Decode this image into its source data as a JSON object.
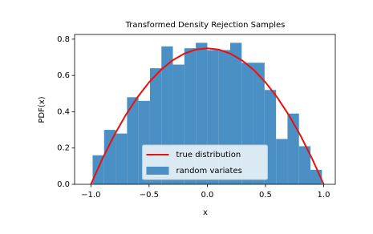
{
  "chart_data": {
    "type": "histogram",
    "title": "Transformed Density Rejection Samples",
    "x_label": "x",
    "y_label": "PDF(x)",
    "xlim": [
      -1.14,
      1.1
    ],
    "ylim": [
      0,
      0.826
    ],
    "xticks": [
      {
        "value": -1.0,
        "label": "−1.0"
      },
      {
        "value": -0.5,
        "label": "−0.5"
      },
      {
        "value": 0,
        "label": "0.0"
      },
      0.5,
      {
        "value": 1.0,
        "label": "1.0"
      }
    ],
    "yticks": [
      {
        "value": 0,
        "label": "0.0"
      },
      0.2,
      0.4,
      0.6,
      0.8
    ],
    "legend": "lower center",
    "series": [
      {
        "name": "true distribution",
        "type": "line",
        "color": "#e8110f",
        "x": [
          -1.0,
          -0.9,
          -0.8,
          -0.7,
          -0.6,
          -0.5,
          -0.4,
          -0.3,
          -0.2,
          -0.1,
          0,
          0.1,
          0.2,
          0.3,
          0.4,
          0.5,
          0.6,
          0.7,
          0.8,
          0.9,
          1.0
        ],
        "values": [
          0,
          0.1425,
          0.27,
          0.3825,
          0.48,
          0.5625,
          0.63,
          0.6825,
          0.72,
          0.7425,
          0.75,
          0.7425,
          0.72,
          0.6825,
          0.63,
          0.5625,
          0.48,
          0.3825,
          0.27,
          0.1425,
          0
        ]
      },
      {
        "name": "random variates",
        "type": "histogram",
        "color": "#4a90c4",
        "bins": [
          -0.985,
          -0.8865,
          -0.788,
          -0.6895,
          -0.591,
          -0.4925,
          -0.394,
          -0.2955,
          -0.197,
          -0.0985,
          0,
          0.0985,
          0.197,
          0.2955,
          0.394,
          0.4925,
          0.591,
          0.6895,
          0.788,
          0.8865,
          0.985
        ],
        "values": [
          0.16,
          0.3,
          0.28,
          0.48,
          0.46,
          0.64,
          0.76,
          0.66,
          0.75,
          0.78,
          0.74,
          0.74,
          0.78,
          0.67,
          0.67,
          0.52,
          0.25,
          0.39,
          0.21,
          0.08
        ]
      }
    ]
  }
}
